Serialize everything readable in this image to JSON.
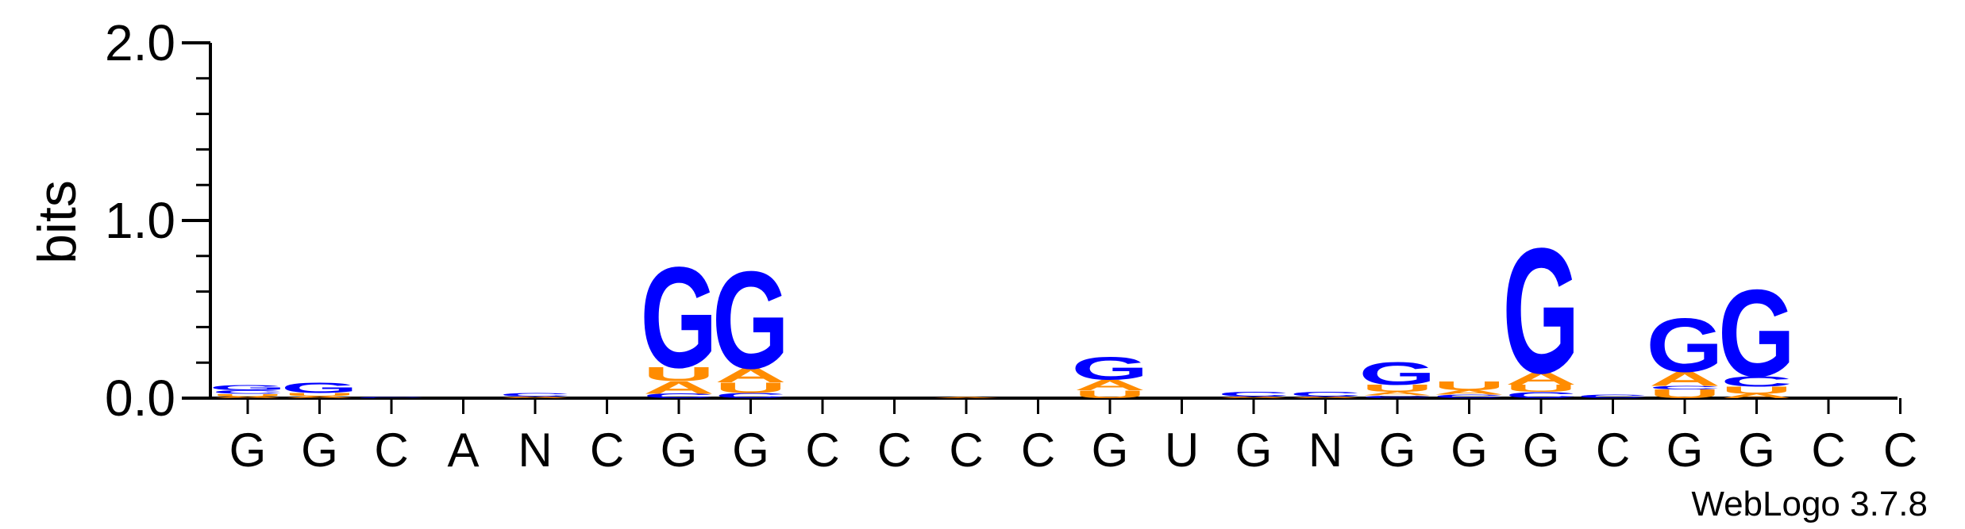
{
  "chart_data": {
    "type": "sequence-logo",
    "ylabel": "bits",
    "ylim": [
      0,
      2.0
    ],
    "yticks": [
      "0.0",
      "1.0",
      "2.0"
    ],
    "ytick_values": [
      0,
      1,
      2
    ],
    "credit": "WebLogo 3.7.8",
    "colors": {
      "G": "#0000ff",
      "C": "#0000ff",
      "A": "#ff8c00",
      "U": "#ff8c00"
    },
    "positions": [
      {
        "label": "G",
        "stack": [
          {
            "base": "A",
            "bits": 0.01
          },
          {
            "base": "U",
            "bits": 0.015
          },
          {
            "base": "C",
            "bits": 0.02
          },
          {
            "base": "G",
            "bits": 0.03
          }
        ]
      },
      {
        "label": "G",
        "stack": [
          {
            "base": "A",
            "bits": 0.012
          },
          {
            "base": "U",
            "bits": 0.018
          },
          {
            "base": "G",
            "bits": 0.06
          }
        ]
      },
      {
        "label": "C",
        "stack": [
          {
            "base": "C",
            "bits": 0.005
          }
        ]
      },
      {
        "label": "A",
        "stack": []
      },
      {
        "label": "N",
        "stack": [
          {
            "base": "A",
            "bits": 0.01
          },
          {
            "base": "C",
            "bits": 0.02
          }
        ]
      },
      {
        "label": "C",
        "stack": []
      },
      {
        "label": "G",
        "stack": [
          {
            "base": "C",
            "bits": 0.025
          },
          {
            "base": "A",
            "bits": 0.07
          },
          {
            "base": "U",
            "bits": 0.08
          },
          {
            "base": "G",
            "bits": 0.58
          }
        ]
      },
      {
        "label": "G",
        "stack": [
          {
            "base": "C",
            "bits": 0.03
          },
          {
            "base": "U",
            "bits": 0.06
          },
          {
            "base": "A",
            "bits": 0.08
          },
          {
            "base": "G",
            "bits": 0.56
          }
        ]
      },
      {
        "label": "C",
        "stack": []
      },
      {
        "label": "C",
        "stack": []
      },
      {
        "label": "C",
        "stack": [
          {
            "base": "A",
            "bits": 0.006
          }
        ]
      },
      {
        "label": "C",
        "stack": []
      },
      {
        "label": "G",
        "stack": [
          {
            "base": "U",
            "bits": 0.045
          },
          {
            "base": "A",
            "bits": 0.06
          },
          {
            "base": "G",
            "bits": 0.13
          }
        ]
      },
      {
        "label": "U",
        "stack": []
      },
      {
        "label": "G",
        "stack": [
          {
            "base": "A",
            "bits": 0.01
          },
          {
            "base": "C",
            "bits": 0.025
          }
        ]
      },
      {
        "label": "N",
        "stack": [
          {
            "base": "A",
            "bits": 0.01
          },
          {
            "base": "C",
            "bits": 0.025
          }
        ]
      },
      {
        "label": "G",
        "stack": [
          {
            "base": "C",
            "bits": 0.015
          },
          {
            "base": "A",
            "bits": 0.02
          },
          {
            "base": "U",
            "bits": 0.04
          },
          {
            "base": "G",
            "bits": 0.13
          }
        ]
      },
      {
        "label": "G",
        "stack": [
          {
            "base": "C",
            "bits": 0.02
          },
          {
            "base": "A",
            "bits": 0.025
          },
          {
            "base": "U",
            "bits": 0.05
          }
        ]
      },
      {
        "label": "G",
        "stack": [
          {
            "base": "C",
            "bits": 0.035
          },
          {
            "base": "U",
            "bits": 0.04
          },
          {
            "base": "A",
            "bits": 0.07
          },
          {
            "base": "G",
            "bits": 0.72
          }
        ]
      },
      {
        "label": "C",
        "stack": [
          {
            "base": "C",
            "bits": 0.02
          }
        ]
      },
      {
        "label": "G",
        "stack": [
          {
            "base": "U",
            "bits": 0.05
          },
          {
            "base": "C",
            "bits": 0.02
          },
          {
            "base": "A",
            "bits": 0.08
          },
          {
            "base": "G",
            "bits": 0.31
          }
        ]
      },
      {
        "label": "G",
        "stack": [
          {
            "base": "A",
            "bits": 0.025
          },
          {
            "base": "U",
            "bits": 0.04
          },
          {
            "base": "C",
            "bits": 0.06
          },
          {
            "base": "G",
            "bits": 0.5
          }
        ]
      },
      {
        "label": "C",
        "stack": []
      },
      {
        "label": "C",
        "stack": []
      }
    ]
  }
}
